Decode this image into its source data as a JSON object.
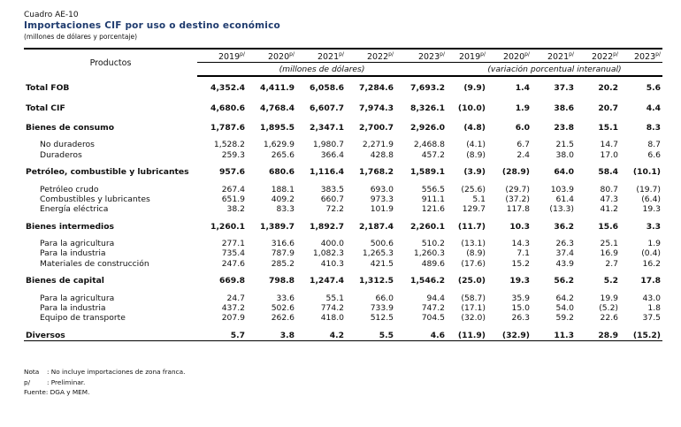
{
  "header": {
    "cuadro": "Cuadro AE-10",
    "title": "Importaciones CIF por uso o destino económico",
    "subtitle": "(millones de dólares y porcentaje)"
  },
  "columns": {
    "product_label": "Productos",
    "years": [
      "2019",
      "2020",
      "2021",
      "2022",
      "2023"
    ],
    "year_sup": "p/",
    "unit_left": "(millones de dólares)",
    "unit_right": "(variación porcentual interanual)"
  },
  "rows": [
    {
      "label": "Total FOB",
      "values": [
        "4,352.4",
        "4,411.9",
        "6,058.6",
        "7,284.6",
        "7,693.2"
      ],
      "pct": [
        "(9.9)",
        "1.4",
        "37.3",
        "20.2",
        "5.6"
      ]
    },
    {
      "label": "Total CIF",
      "values": [
        "4,680.6",
        "4,768.4",
        "6,607.7",
        "7,974.3",
        "8,326.1"
      ],
      "pct": [
        "(10.0)",
        "1.9",
        "38.6",
        "20.7",
        "4.4"
      ]
    },
    {
      "label": "Bienes de consumo",
      "values": [
        "1,787.6",
        "1,895.5",
        "2,347.1",
        "2,700.7",
        "2,926.0"
      ],
      "pct": [
        "(4.8)",
        "6.0",
        "23.8",
        "15.1",
        "8.3"
      ]
    },
    {
      "label": "No duraderos",
      "values": [
        "1,528.2",
        "1,629.9",
        "1,980.7",
        "2,271.9",
        "2,468.8"
      ],
      "pct": [
        "(4.1)",
        "6.7",
        "21.5",
        "14.7",
        "8.7"
      ]
    },
    {
      "label": "Duraderos",
      "values": [
        "259.3",
        "265.6",
        "366.4",
        "428.8",
        "457.2"
      ],
      "pct": [
        "(8.9)",
        "2.4",
        "38.0",
        "17.0",
        "6.6"
      ]
    },
    {
      "label": "Petróleo, combustible y lubricantes",
      "values": [
        "957.6",
        "680.6",
        "1,116.4",
        "1,768.2",
        "1,589.1"
      ],
      "pct": [
        "(3.9)",
        "(28.9)",
        "64.0",
        "58.4",
        "(10.1)"
      ]
    },
    {
      "label": "Petróleo crudo",
      "values": [
        "267.4",
        "188.1",
        "383.5",
        "693.0",
        "556.5"
      ],
      "pct": [
        "(25.6)",
        "(29.7)",
        "103.9",
        "80.7",
        "(19.7)"
      ]
    },
    {
      "label": "Combustibles y lubricantes",
      "values": [
        "651.9",
        "409.2",
        "660.7",
        "973.3",
        "911.1"
      ],
      "pct": [
        "5.1",
        "(37.2)",
        "61.4",
        "47.3",
        "(6.4)"
      ]
    },
    {
      "label": "Energía eléctrica",
      "values": [
        "38.2",
        "83.3",
        "72.2",
        "101.9",
        "121.6"
      ],
      "pct": [
        "129.7",
        "117.8",
        "(13.3)",
        "41.2",
        "19.3"
      ]
    },
    {
      "label": "Bienes intermedios",
      "values": [
        "1,260.1",
        "1,389.7",
        "1,892.7",
        "2,187.4",
        "2,260.1"
      ],
      "pct": [
        "(11.7)",
        "10.3",
        "36.2",
        "15.6",
        "3.3"
      ]
    },
    {
      "label": "Para la agricultura",
      "values": [
        "277.1",
        "316.6",
        "400.0",
        "500.6",
        "510.2"
      ],
      "pct": [
        "(13.1)",
        "14.3",
        "26.3",
        "25.1",
        "1.9"
      ]
    },
    {
      "label": "Para la industria",
      "values": [
        "735.4",
        "787.9",
        "1,082.3",
        "1,265.3",
        "1,260.3"
      ],
      "pct": [
        "(8.9)",
        "7.1",
        "37.4",
        "16.9",
        "(0.4)"
      ]
    },
    {
      "label": "Materiales de construcción",
      "values": [
        "247.6",
        "285.2",
        "410.3",
        "421.5",
        "489.6"
      ],
      "pct": [
        "(17.6)",
        "15.2",
        "43.9",
        "2.7",
        "16.2"
      ]
    },
    {
      "label": "Bienes de capital",
      "values": [
        "669.8",
        "798.8",
        "1,247.4",
        "1,312.5",
        "1,546.2"
      ],
      "pct": [
        "(25.0)",
        "19.3",
        "56.2",
        "5.2",
        "17.8"
      ]
    },
    {
      "label": "Para la agricultura",
      "values": [
        "24.7",
        "33.6",
        "55.1",
        "66.0",
        "94.4"
      ],
      "pct": [
        "(58.7)",
        "35.9",
        "64.2",
        "19.9",
        "43.0"
      ]
    },
    {
      "label": "Para la industria",
      "values": [
        "437.2",
        "502.6",
        "774.2",
        "733.9",
        "747.2"
      ],
      "pct": [
        "(17.1)",
        "15.0",
        "54.0",
        "(5.2)",
        "1.8"
      ]
    },
    {
      "label": "Equipo de transporte",
      "values": [
        "207.9",
        "262.6",
        "418.0",
        "512.5",
        "704.5"
      ],
      "pct": [
        "(32.0)",
        "26.3",
        "59.2",
        "22.6",
        "37.5"
      ]
    },
    {
      "label": "Diversos",
      "values": [
        "5.7",
        "3.8",
        "4.2",
        "5.5",
        "4.6"
      ],
      "pct": [
        "(11.9)",
        "(32.9)",
        "11.3",
        "28.9",
        "(15.2)"
      ]
    }
  ],
  "notes": [
    {
      "key": "Nota",
      "text": ": No incluye importaciones de zona franca."
    },
    {
      "key": "p/",
      "text": ": Preliminar."
    },
    {
      "key": "",
      "text": "Fuente: DGA y MEM."
    }
  ]
}
